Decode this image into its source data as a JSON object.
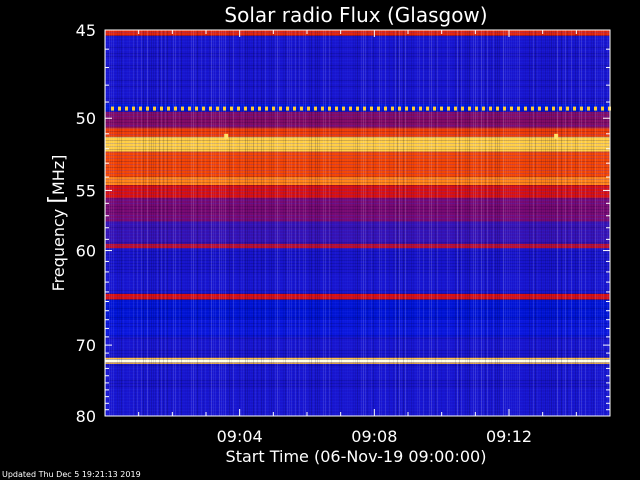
{
  "chart_data": {
    "type": "heatmap",
    "title": "Solar radio Flux (Glasgow)",
    "xlabel": "Start Time (06-Nov-19 09:00:00)",
    "ylabel_text": "Frequency ",
    "ylabel_bracket": "[",
    "ylabel_unit": "MHz]",
    "x_ticks": [
      "09:04",
      "09:08",
      "09:12"
    ],
    "x_tick_minutes": [
      4,
      8,
      12
    ],
    "xlim_minutes": [
      0,
      15
    ],
    "y_ticks": [
      "45",
      "50",
      "55",
      "60",
      "70",
      "80"
    ],
    "y_tick_values": [
      45,
      50,
      55,
      60,
      70,
      80
    ],
    "ylim": [
      80,
      45
    ],
    "y_scale": "reciprocal",
    "colormap": [
      "#00006e",
      "#0018e6",
      "#7a0a70",
      "#d81010",
      "#ff5a00",
      "#ffd84a",
      "#ffffe8"
    ],
    "bands": [
      {
        "f_start": 45.0,
        "f_end": 45.3,
        "intensity": 0.55
      },
      {
        "f_start": 45.3,
        "f_end": 49.1,
        "intensity": 0.2
      },
      {
        "f_start": 49.1,
        "f_end": 49.6,
        "intensity": 0.15
      },
      {
        "f_start": 49.6,
        "f_end": 50.6,
        "intensity": 0.35
      },
      {
        "f_start": 50.6,
        "f_end": 51.2,
        "intensity": 0.6
      },
      {
        "f_start": 51.2,
        "f_end": 52.2,
        "intensity": 0.82
      },
      {
        "f_start": 52.2,
        "f_end": 54.0,
        "intensity": 0.62
      },
      {
        "f_start": 54.0,
        "f_end": 54.6,
        "intensity": 0.72
      },
      {
        "f_start": 54.6,
        "f_end": 55.6,
        "intensity": 0.5
      },
      {
        "f_start": 55.6,
        "f_end": 57.5,
        "intensity": 0.33
      },
      {
        "f_start": 57.5,
        "f_end": 59.4,
        "intensity": 0.24
      },
      {
        "f_start": 59.4,
        "f_end": 59.8,
        "intensity": 0.45
      },
      {
        "f_start": 59.8,
        "f_end": 64.2,
        "intensity": 0.2
      },
      {
        "f_start": 64.2,
        "f_end": 64.8,
        "intensity": 0.5
      },
      {
        "f_start": 64.8,
        "f_end": 67.0,
        "intensity": 0.14
      },
      {
        "f_start": 67.0,
        "f_end": 69.0,
        "intensity": 0.18
      },
      {
        "f_start": 69.0,
        "f_end": 71.6,
        "intensity": 0.2
      },
      {
        "f_start": 71.6,
        "f_end": 71.8,
        "intensity": 0.8
      },
      {
        "f_start": 71.8,
        "f_end": 72.2,
        "intensity": 1.0
      },
      {
        "f_start": 72.2,
        "f_end": 72.4,
        "intensity": 0.8
      },
      {
        "f_start": 72.4,
        "f_end": 80.0,
        "intensity": 0.2
      }
    ],
    "dotted_line_freq": 49.4,
    "spikes": [
      {
        "time_min": 3.6,
        "freq": 51.2
      },
      {
        "time_min": 13.4,
        "freq": 51.2
      }
    ]
  },
  "footer": "Updated Thu Dec  5 19:21:13 2019"
}
